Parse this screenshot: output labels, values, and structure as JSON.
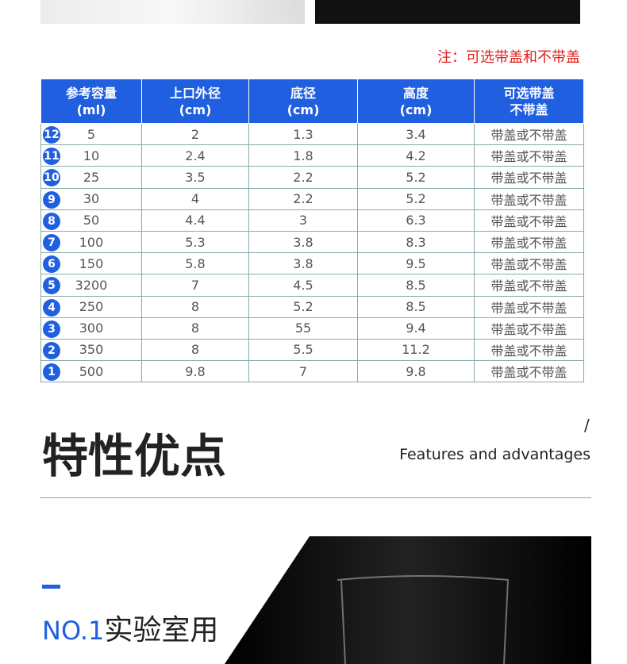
{
  "note": "注：可选带盖和不带盖",
  "table": {
    "headers": [
      [
        "参考容量",
        "(ml)"
      ],
      [
        "上口外径",
        "(cm)"
      ],
      [
        "底径",
        "(cm)"
      ],
      [
        "高度",
        "(cm)"
      ],
      [
        "可选带盖",
        "不带盖"
      ]
    ],
    "rows": [
      [
        "12",
        "5",
        "2",
        "1.3",
        "3.4",
        "带盖或不带盖"
      ],
      [
        "11",
        "10",
        "2.4",
        "1.8",
        "4.2",
        "带盖或不带盖"
      ],
      [
        "10",
        "25",
        "3.5",
        "2.2",
        "5.2",
        "带盖或不带盖"
      ],
      [
        "9",
        "30",
        "4",
        "2.2",
        "5.2",
        "带盖或不带盖"
      ],
      [
        "8",
        "50",
        "4.4",
        "3",
        "6.3",
        "带盖或不带盖"
      ],
      [
        "7",
        "100",
        "5.3",
        "3.8",
        "8.3",
        "带盖或不带盖"
      ],
      [
        "6",
        "150",
        "5.8",
        "3.8",
        "9.5",
        "带盖或不带盖"
      ],
      [
        "5",
        "3200",
        "7",
        "4.5",
        "8.5",
        "带盖或不带盖"
      ],
      [
        "4",
        "250",
        "8",
        "5.2",
        "8.5",
        "带盖或不带盖"
      ],
      [
        "3",
        "300",
        "8",
        "55",
        "9.4",
        "带盖或不带盖"
      ],
      [
        "2",
        "350",
        "8",
        "5.5",
        "11.2",
        "带盖或不带盖"
      ],
      [
        "1",
        "500",
        "9.8",
        "7",
        "9.8",
        "带盖或不带盖"
      ]
    ]
  },
  "section": {
    "title": "特性优点",
    "slash": "/",
    "subtitle": "Features and advantages"
  },
  "feature": {
    "number": "NO.1",
    "label": "实验室用"
  }
}
